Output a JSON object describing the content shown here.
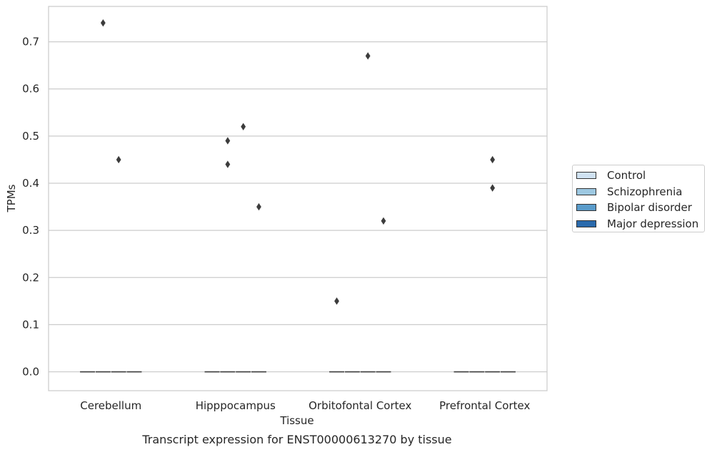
{
  "chart_data": {
    "type": "box",
    "title": "",
    "caption": "Transcript expression for ENST00000613270 by tissue",
    "xlabel": "Tissue",
    "ylabel": "TPMs",
    "ylim": [
      -0.04,
      0.775
    ],
    "yticks": [
      0.0,
      0.1,
      0.2,
      0.3,
      0.4,
      0.5,
      0.6,
      0.7
    ],
    "grid": true,
    "legend_position": "right",
    "categories": [
      "Cerebellum",
      "Hipppocampus",
      "Orbitofontal Cortex",
      "Prefrontal Cortex"
    ],
    "series": [
      {
        "name": "Control",
        "color": "#d0e2f2",
        "medians": [
          0.0,
          0.0,
          0.0,
          0.0
        ],
        "outliers": [
          [],
          [],
          [
            0.15
          ],
          []
        ]
      },
      {
        "name": "Schizophrenia",
        "color": "#9dc8e1",
        "medians": [
          0.0,
          0.0,
          0.0,
          0.0
        ],
        "outliers": [
          [
            0.74
          ],
          [
            0.49,
            0.44
          ],
          [],
          []
        ]
      },
      {
        "name": "Bipolar disorder",
        "color": "#5a9ccb",
        "medians": [
          0.0,
          0.0,
          0.0,
          0.0
        ],
        "outliers": [
          [
            0.45
          ],
          [
            0.52
          ],
          [
            0.67
          ],
          [
            0.45,
            0.39
          ]
        ]
      },
      {
        "name": "Major depression",
        "color": "#2a6aac",
        "medians": [
          0.0,
          0.0,
          0.0,
          0.0
        ],
        "outliers": [
          [],
          [
            0.35
          ],
          [
            0.32
          ],
          []
        ]
      }
    ]
  }
}
